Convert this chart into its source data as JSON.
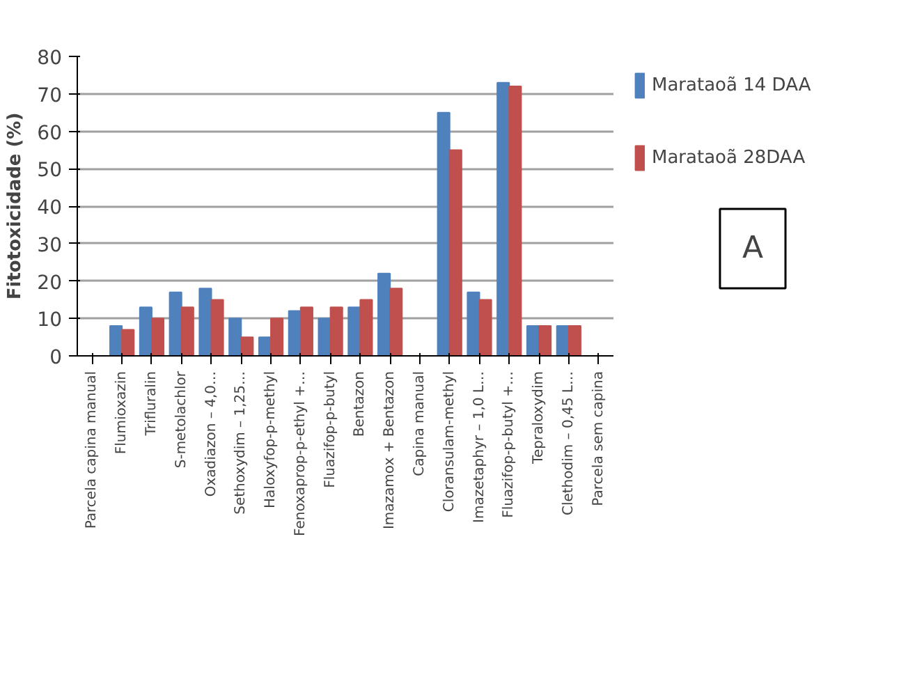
{
  "chart_data": {
    "type": "bar",
    "ylabel": "Fitotoxicidade (%)",
    "categories": [
      "Parcela capina manual",
      "Flumioxazin",
      "Trifluralin",
      "S-metolachlor",
      "Oxadiazon – 4,0…",
      "Sethoxydim – 1,25…",
      "Haloxyfop-p-methyl",
      "Fenoxaprop-p-ethyl +…",
      "Fluazifop-p-butyl",
      "Bentazon",
      "Imazamox + Bentazon",
      "Capina manual",
      "Cloransulam-methyl",
      "Imazetaphyr – 1,0 L…",
      "Fluazifop-p-butyl +…",
      "Tepraloxydim",
      "Clethodim – 0,45 L…",
      "Parcela sem capina"
    ],
    "series": [
      {
        "name": "Marataoã 14 DAA",
        "color": "#4f81bd",
        "values": [
          0,
          8,
          13,
          17,
          18,
          10,
          5,
          12,
          10,
          13,
          22,
          0,
          65,
          17,
          73,
          8,
          8,
          0
        ]
      },
      {
        "name": "Marataoã 28DAA",
        "color": "#c0504d",
        "values": [
          0,
          7,
          10,
          13,
          15,
          5,
          10,
          13,
          13,
          15,
          18,
          0,
          55,
          15,
          72,
          8,
          8,
          0
        ]
      }
    ],
    "ylim": [
      0,
      80
    ],
    "yticks": [
      0,
      10,
      20,
      30,
      40,
      50,
      60,
      70,
      80
    ],
    "grid": "y",
    "legend": "right",
    "annotations": [
      "A"
    ]
  }
}
